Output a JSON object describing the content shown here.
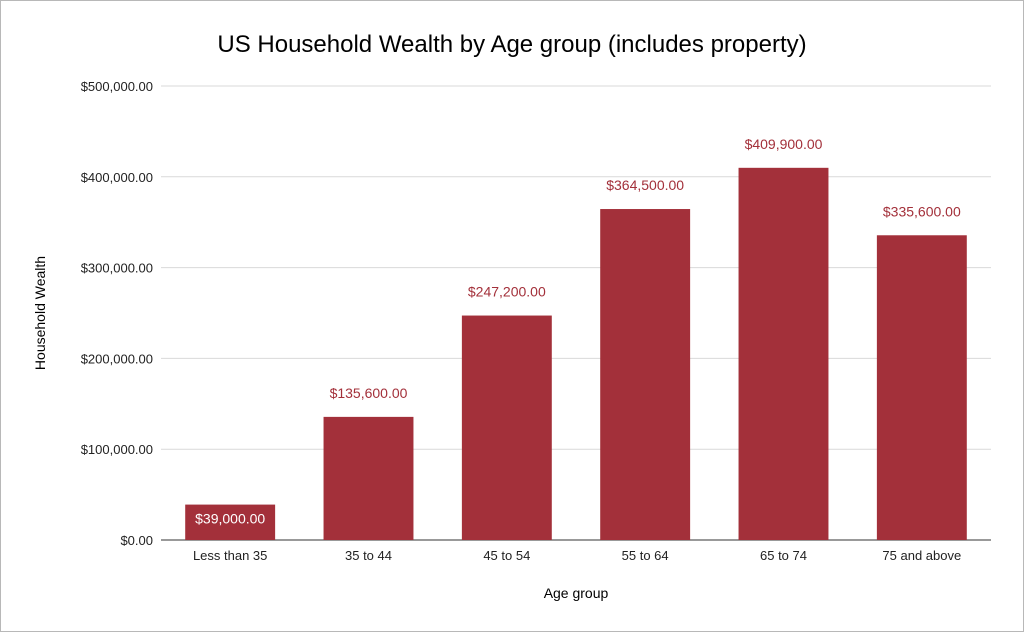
{
  "chart_data": {
    "type": "bar",
    "title": "US Household Wealth by Age group (includes property)",
    "xlabel": "Age group",
    "ylabel": "Household Wealth",
    "categories": [
      "Less than 35",
      "35 to 44",
      "45 to 54",
      "55 to 64",
      "65 to 74",
      "75 and above"
    ],
    "values": [
      39000,
      135600,
      247200,
      364500,
      409900,
      335600
    ],
    "data_labels": [
      "$39,000.00",
      "$135,600.00",
      "$247,200.00",
      "$364,500.00",
      "$409,900.00",
      "$335,600.00"
    ],
    "ylim": [
      0,
      500000
    ],
    "y_ticks": [
      0,
      100000,
      200000,
      300000,
      400000,
      500000
    ],
    "y_tick_labels": [
      "$0.00",
      "$100,000.00",
      "$200,000.00",
      "$300,000.00",
      "$400,000.00",
      "$500,000.00"
    ],
    "grid": true,
    "legend": "none",
    "colors": {
      "bar": "#a3303a",
      "label_outside": "#a3303a",
      "label_inside": "#ffffff",
      "grid": "#d9d9d9",
      "axis": "#333333"
    }
  }
}
